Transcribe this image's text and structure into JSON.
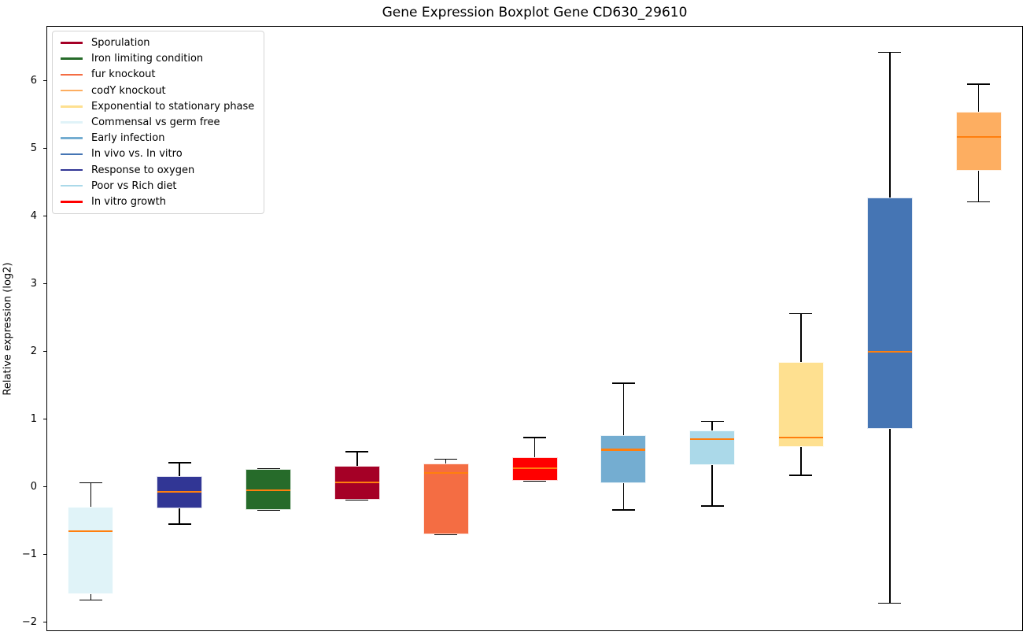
{
  "chart_data": {
    "type": "boxplot",
    "title": "Gene Expression Boxplot Gene CD630_29610",
    "ylabel": "Relative expression (log2)",
    "ylim": [
      -2.13,
      6.81
    ],
    "yticks": [
      -2,
      -1,
      0,
      1,
      2,
      3,
      4,
      5,
      6
    ],
    "grid": false,
    "legend_position": "upper left",
    "median_color": "#ff7f0e",
    "whisker_color": "#000000",
    "legend": [
      {
        "label": "Sporulation",
        "color": "#a50026"
      },
      {
        "label": "Iron limiting condition",
        "color": "#266b2a"
      },
      {
        "label": "fur knockout",
        "color": "#f46d43"
      },
      {
        "label": "codY knockout",
        "color": "#fdae61"
      },
      {
        "label": "Exponential to stationary phase",
        "color": "#fee090"
      },
      {
        "label": "Commensal vs germ free",
        "color": "#e0f3f8"
      },
      {
        "label": "Early infection",
        "color": "#74add1"
      },
      {
        "label": "In vivo vs. In vitro",
        "color": "#4575b4"
      },
      {
        "label": "Response to oxygen",
        "color": "#313695"
      },
      {
        "label": "Poor vs Rich diet",
        "color": "#abd9e9"
      },
      {
        "label": "In vitro growth",
        "color": "#ff0000"
      }
    ],
    "boxes": [
      {
        "label": "Commensal vs germ free",
        "color": "#e0f3f8",
        "whisker_low": -1.67,
        "q1": -1.58,
        "median": -0.65,
        "q3": -0.29,
        "whisker_high": 0.06
      },
      {
        "label": "Response to oxygen",
        "color": "#313695",
        "whisker_low": -0.55,
        "q1": -0.32,
        "median": -0.07,
        "q3": 0.16,
        "whisker_high": 0.36
      },
      {
        "label": "Iron limiting condition",
        "color": "#266b2a",
        "whisker_low": -0.34,
        "q1": -0.34,
        "median": -0.05,
        "q3": 0.27,
        "whisker_high": 0.27
      },
      {
        "label": "Sporulation",
        "color": "#a50026",
        "whisker_low": -0.19,
        "q1": -0.19,
        "median": 0.07,
        "q3": 0.31,
        "whisker_high": 0.52
      },
      {
        "label": "fur knockout",
        "color": "#f46d43",
        "whisker_low": -0.7,
        "q1": -0.7,
        "median": 0.21,
        "q3": 0.35,
        "whisker_high": 0.41
      },
      {
        "label": "In vitro growth",
        "color": "#ff0000",
        "whisker_low": 0.09,
        "q1": 0.09,
        "median": 0.28,
        "q3": 0.44,
        "whisker_high": 0.73
      },
      {
        "label": "Early infection",
        "color": "#74add1",
        "whisker_low": -0.34,
        "q1": 0.05,
        "median": 0.55,
        "q3": 0.77,
        "whisker_high": 1.53
      },
      {
        "label": "Poor vs Rich diet",
        "color": "#abd9e9",
        "whisker_low": -0.28,
        "q1": 0.32,
        "median": 0.71,
        "q3": 0.83,
        "whisker_high": 0.97
      },
      {
        "label": "Exponential to stationary phase",
        "color": "#fee090",
        "whisker_low": 0.17,
        "q1": 0.59,
        "median": 0.73,
        "q3": 1.85,
        "whisker_high": 2.56
      },
      {
        "label": "In vivo vs. In vitro",
        "color": "#4575b4",
        "whisker_low": -1.72,
        "q1": 0.86,
        "median": 2.0,
        "q3": 4.27,
        "whisker_high": 6.42
      },
      {
        "label": "codY knockout",
        "color": "#fdae61",
        "whisker_low": 4.21,
        "q1": 4.67,
        "median": 5.17,
        "q3": 5.54,
        "whisker_high": 5.95
      }
    ]
  }
}
